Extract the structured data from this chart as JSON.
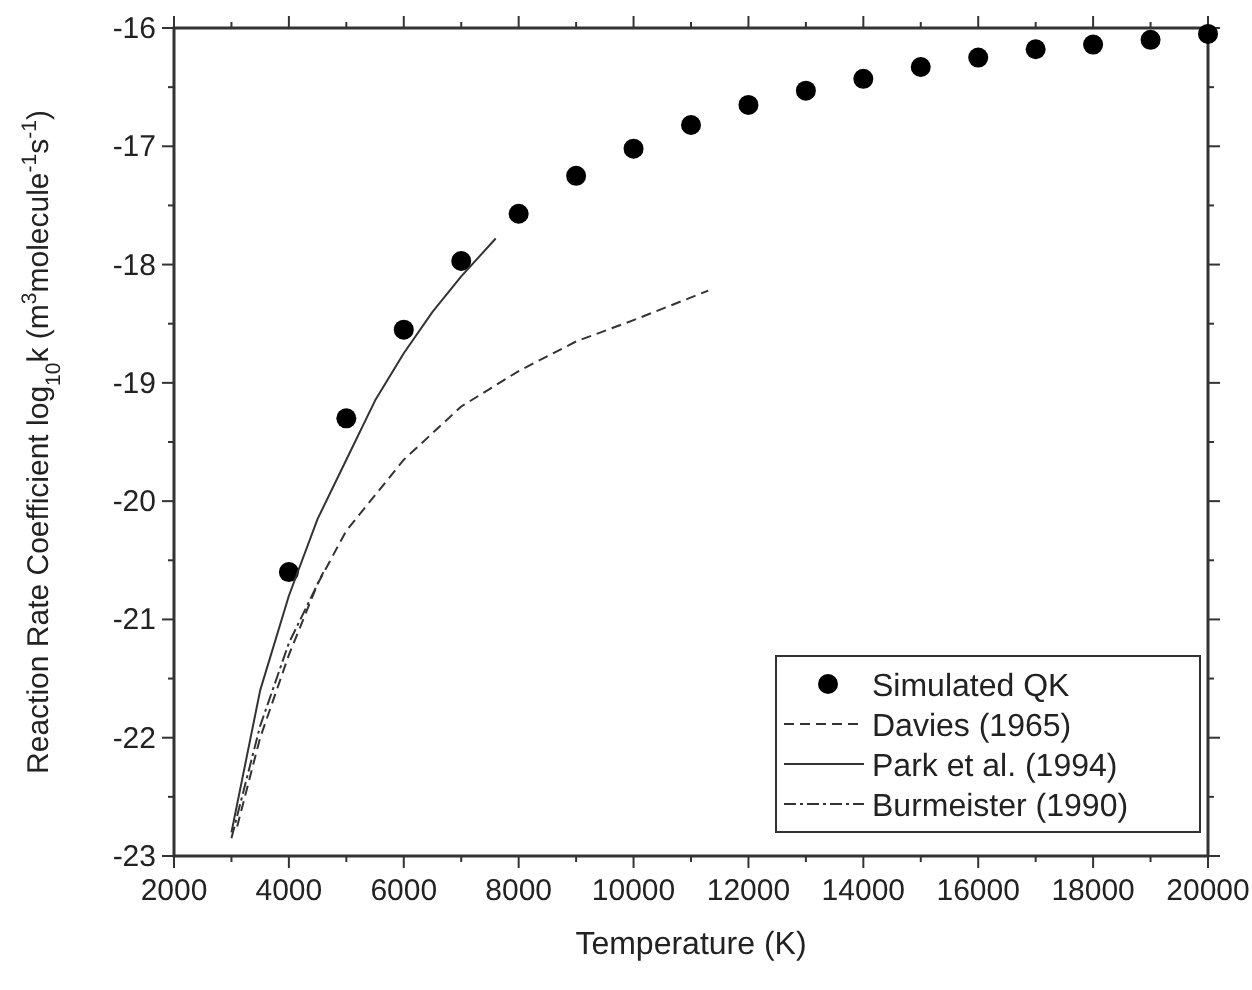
{
  "chart_data": {
    "type": "line",
    "xlabel": "Temperature (K)",
    "ylabel": "Reaction Rate Coefficient log$_{10}$k (m$^{3}$molecule$^{-1}$s$^{-1}$)",
    "xlim": [
      2000,
      20000
    ],
    "xticks": [
      2000,
      4000,
      6000,
      8000,
      10000,
      12000,
      14000,
      16000,
      18000,
      20000
    ],
    "ylim": [
      -23,
      -16
    ],
    "yticks": [
      -23,
      -22,
      -21,
      -20,
      -19,
      -18,
      -17,
      -16
    ],
    "legend": "bottom right",
    "grid": false,
    "series": [
      {
        "name": "Simulated QK",
        "type": "scatter",
        "marker": "circle",
        "color": "#000000",
        "x": [
          4000,
          5000,
          6000,
          7000,
          8000,
          9000,
          10000,
          11000,
          12000,
          13000,
          14000,
          15000,
          16000,
          17000,
          18000,
          19000,
          20000
        ],
        "values": [
          -20.6,
          -19.3,
          -18.55,
          -17.97,
          -17.57,
          -17.25,
          -17.02,
          -16.82,
          -16.65,
          -16.53,
          -16.43,
          -16.33,
          -16.25,
          -16.18,
          -16.14,
          -16.1,
          -16.05
        ]
      },
      {
        "name": "Davies (1965)",
        "line_style": "dashed",
        "color": "#333333",
        "x": [
          3100,
          3500,
          4000,
          4500,
          5000,
          6000,
          7000,
          8000,
          9000,
          10000,
          11300
        ],
        "values": [
          -22.75,
          -22.0,
          -21.3,
          -20.7,
          -20.25,
          -19.65,
          -19.2,
          -18.9,
          -18.65,
          -18.47,
          -18.22
        ]
      },
      {
        "name": "Park et al. (1994)",
        "line_style": "solid",
        "color": "#333333",
        "x": [
          3000,
          3500,
          4000,
          4500,
          5000,
          5500,
          6000,
          6500,
          7000,
          7600
        ],
        "values": [
          -22.8,
          -21.6,
          -20.8,
          -20.15,
          -19.65,
          -19.15,
          -18.75,
          -18.4,
          -18.1,
          -17.78
        ]
      },
      {
        "name": "Burmeister (1990)",
        "line_style": "dashdot",
        "color": "#333333",
        "x": [
          3000,
          3500,
          4000,
          4600
        ],
        "values": [
          -22.85,
          -21.9,
          -21.2,
          -20.6
        ]
      }
    ]
  }
}
